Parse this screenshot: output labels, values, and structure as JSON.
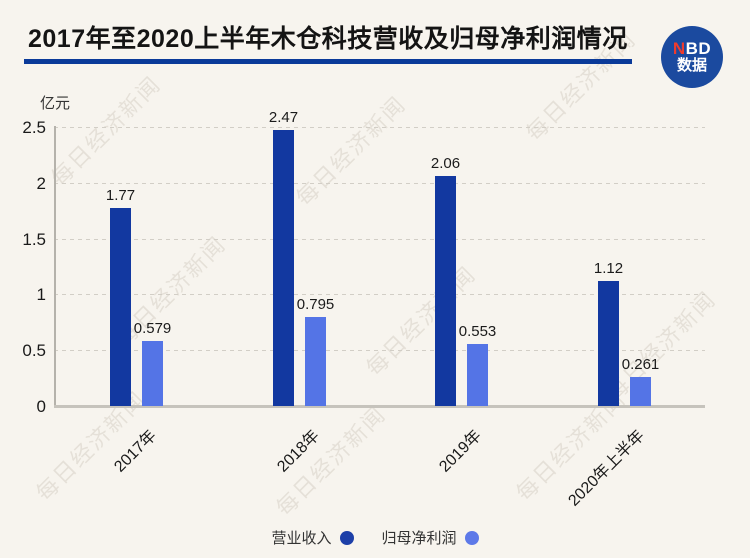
{
  "header": {
    "title": "2017年至2020上半年木仓科技营收及归母净利润情况",
    "logo": {
      "brand_red": "N",
      "brand_rest": "BD",
      "caption": "数据"
    }
  },
  "watermark": {
    "text": "每日经济新闻"
  },
  "chart_data": {
    "type": "bar",
    "title": "2017年至2020上半年木仓科技营收及归母净利润情况",
    "unit_label": "亿元",
    "categories": [
      "2017年",
      "2018年",
      "2019年",
      "2020年上半年"
    ],
    "series": [
      {
        "name": "营业收入",
        "color": "#1238a0",
        "values": [
          1.77,
          2.47,
          2.06,
          1.12
        ]
      },
      {
        "name": "归母净利润",
        "color": "#5474e6",
        "values": [
          0.579,
          0.795,
          0.553,
          0.261
        ]
      }
    ],
    "ylim": [
      0,
      2.5
    ],
    "yticks": [
      0,
      0.5,
      1,
      1.5,
      2,
      2.5
    ],
    "grid": "dashed-horizontal",
    "legend_position": "bottom-center"
  },
  "legend": {
    "items": [
      {
        "label": "营业收入",
        "color": "#1d3fa8"
      },
      {
        "label": "归母净利润",
        "color": "#5d79e8"
      }
    ]
  },
  "colors": {
    "background": "#f7f4ee",
    "title_underline": "#0a3a99",
    "logo_circle": "#1b4a9f",
    "logo_accent_red": "#ef3b2d",
    "revenue_bar": "#1238a0",
    "profit_bar": "#5474e6"
  }
}
